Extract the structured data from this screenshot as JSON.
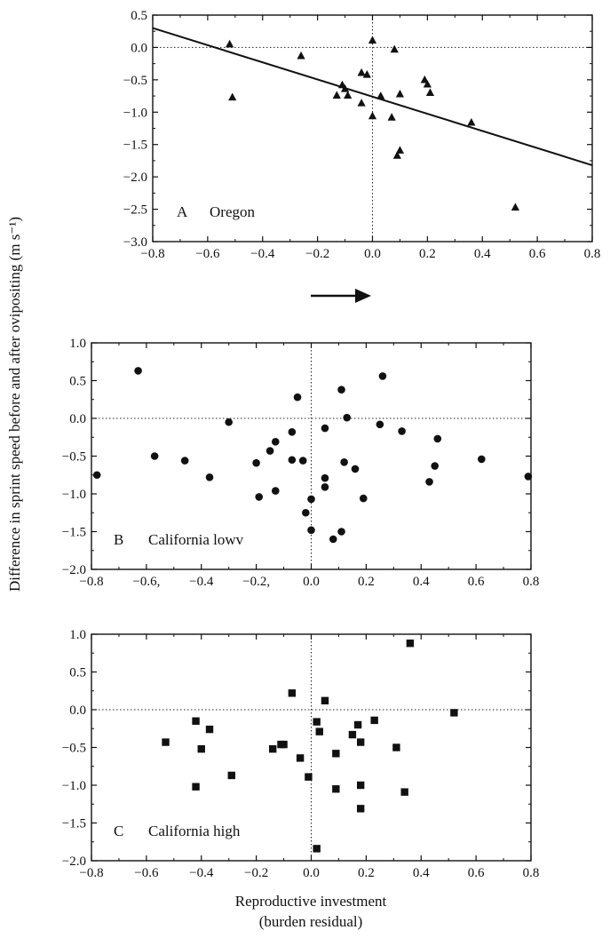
{
  "figure": {
    "ylabel": "Difference in sprint speed before and after ovipositing (m s⁻¹)",
    "xlabel_line1": "Reproductive investment",
    "xlabel_line2": "(burden residual)"
  },
  "chart_data": [
    {
      "type": "scatter",
      "panel_label": "A",
      "panel_name": "Oregon",
      "marker": "triangle",
      "xlim": [
        -0.8,
        0.8
      ],
      "ylim": [
        -3.0,
        0.5
      ],
      "xticks": [
        -0.8,
        -0.6,
        -0.4,
        -0.2,
        0.0,
        0.2,
        0.4,
        0.6,
        0.8
      ],
      "yticks": [
        0.5,
        0.0,
        -0.5,
        -1.0,
        -1.5,
        -2.0,
        -2.5,
        -3.0
      ],
      "xtick_labels": [
        "−0.8",
        "−0.6",
        "−0.4",
        "−0.2",
        "0.0",
        "0.2",
        "0.4",
        "0.6",
        "0.8"
      ],
      "ytick_labels": [
        "0.5",
        "0.0",
        "−0.5",
        "−1.0",
        "−1.5",
        "−2.0",
        "−2.5",
        "−3.0"
      ],
      "regression_line": {
        "x": [
          -0.8,
          0.8
        ],
        "y": [
          0.3,
          -1.82
        ]
      },
      "points": [
        {
          "x": -0.52,
          "y": 0.05
        },
        {
          "x": -0.51,
          "y": -0.77
        },
        {
          "x": -0.26,
          "y": -0.13
        },
        {
          "x": -0.13,
          "y": -0.74
        },
        {
          "x": -0.11,
          "y": -0.58
        },
        {
          "x": -0.1,
          "y": -0.64
        },
        {
          "x": -0.09,
          "y": -0.74
        },
        {
          "x": -0.04,
          "y": -0.86
        },
        {
          "x": -0.04,
          "y": -0.39
        },
        {
          "x": -0.02,
          "y": -0.42
        },
        {
          "x": 0.0,
          "y": 0.11
        },
        {
          "x": 0.0,
          "y": -1.06
        },
        {
          "x": 0.03,
          "y": -0.75
        },
        {
          "x": 0.07,
          "y": -1.08
        },
        {
          "x": 0.08,
          "y": -0.03
        },
        {
          "x": 0.09,
          "y": -1.67
        },
        {
          "x": 0.1,
          "y": -0.72
        },
        {
          "x": 0.1,
          "y": -1.59
        },
        {
          "x": 0.19,
          "y": -0.5
        },
        {
          "x": 0.2,
          "y": -0.57
        },
        {
          "x": 0.21,
          "y": -0.7
        },
        {
          "x": 0.36,
          "y": -1.16
        },
        {
          "x": 0.52,
          "y": -2.47
        }
      ]
    },
    {
      "type": "scatter",
      "panel_label": "B",
      "panel_name": "California lowv",
      "marker": "circle",
      "xlim": [
        -0.8,
        0.8
      ],
      "ylim": [
        -2.0,
        1.0
      ],
      "xticks": [
        -0.8,
        -0.6,
        -0.4,
        -0.2,
        0.0,
        0.2,
        0.4,
        0.6,
        0.8
      ],
      "yticks": [
        1.0,
        0.5,
        0.0,
        -0.5,
        -1.0,
        -1.5,
        -2.0
      ],
      "xtick_labels": [
        "−0.8",
        "−0.6,",
        "−0.4",
        "−0.2,",
        "0.0",
        "0.2",
        "0.4",
        "0.6",
        "0.8"
      ],
      "ytick_labels": [
        "1.0",
        "0.5",
        "0.0",
        "−0.5",
        "−1.0",
        "−1.5",
        "−2.0"
      ],
      "points": [
        {
          "x": -0.78,
          "y": -0.75
        },
        {
          "x": -0.63,
          "y": 0.63
        },
        {
          "x": -0.57,
          "y": -0.5
        },
        {
          "x": -0.46,
          "y": -0.56
        },
        {
          "x": -0.37,
          "y": -0.78
        },
        {
          "x": -0.3,
          "y": -0.05
        },
        {
          "x": -0.2,
          "y": -0.59
        },
        {
          "x": -0.19,
          "y": -1.04
        },
        {
          "x": -0.15,
          "y": -0.43
        },
        {
          "x": -0.13,
          "y": -0.31
        },
        {
          "x": -0.13,
          "y": -0.96
        },
        {
          "x": -0.07,
          "y": -0.18
        },
        {
          "x": -0.07,
          "y": -0.55
        },
        {
          "x": -0.05,
          "y": 0.28
        },
        {
          "x": -0.03,
          "y": -0.56
        },
        {
          "x": -0.02,
          "y": -1.25
        },
        {
          "x": 0.0,
          "y": -1.07
        },
        {
          "x": 0.0,
          "y": -1.48
        },
        {
          "x": 0.05,
          "y": -0.13
        },
        {
          "x": 0.05,
          "y": -0.79
        },
        {
          "x": 0.05,
          "y": -0.91
        },
        {
          "x": 0.08,
          "y": -1.6
        },
        {
          "x": 0.11,
          "y": 0.38
        },
        {
          "x": 0.11,
          "y": -1.5
        },
        {
          "x": 0.12,
          "y": -0.58
        },
        {
          "x": 0.13,
          "y": 0.01
        },
        {
          "x": 0.16,
          "y": -0.67
        },
        {
          "x": 0.19,
          "y": -1.06
        },
        {
          "x": 0.25,
          "y": -0.08
        },
        {
          "x": 0.26,
          "y": 0.56
        },
        {
          "x": 0.33,
          "y": -0.17
        },
        {
          "x": 0.43,
          "y": -0.84
        },
        {
          "x": 0.45,
          "y": -0.63
        },
        {
          "x": 0.46,
          "y": -0.27
        },
        {
          "x": 0.62,
          "y": -0.54
        },
        {
          "x": 0.79,
          "y": -0.77
        }
      ]
    },
    {
      "type": "scatter",
      "panel_label": "C",
      "panel_name": "California high",
      "marker": "square",
      "xlim": [
        -0.8,
        0.8
      ],
      "ylim": [
        -2.0,
        1.0
      ],
      "xticks": [
        -0.8,
        -0.6,
        -0.4,
        -0.2,
        0.0,
        0.2,
        0.4,
        0.6,
        0.8
      ],
      "yticks": [
        1.0,
        0.5,
        0.0,
        -0.5,
        -1.0,
        -1.5,
        -2.0
      ],
      "xtick_labels": [
        "−0.8",
        "−0.6",
        "−0.4",
        "−0.2",
        "0.0",
        "0.2",
        "0.4",
        "0.6",
        "0.8"
      ],
      "ytick_labels": [
        "1.0",
        "0.5",
        "0.0",
        "−0.5",
        "−1.0",
        "−1.5",
        "−2.0"
      ],
      "points": [
        {
          "x": -0.53,
          "y": -0.43
        },
        {
          "x": -0.42,
          "y": -0.15
        },
        {
          "x": -0.42,
          "y": -1.02
        },
        {
          "x": -0.4,
          "y": -0.52
        },
        {
          "x": -0.37,
          "y": -0.26
        },
        {
          "x": -0.29,
          "y": -0.87
        },
        {
          "x": -0.14,
          "y": -0.52
        },
        {
          "x": -0.11,
          "y": -0.46
        },
        {
          "x": -0.1,
          "y": -0.46
        },
        {
          "x": -0.07,
          "y": 0.22
        },
        {
          "x": -0.04,
          "y": -0.64
        },
        {
          "x": -0.01,
          "y": -0.89
        },
        {
          "x": 0.02,
          "y": -0.16
        },
        {
          "x": 0.02,
          "y": -1.84
        },
        {
          "x": 0.03,
          "y": -0.29
        },
        {
          "x": 0.05,
          "y": 0.12
        },
        {
          "x": 0.09,
          "y": -0.58
        },
        {
          "x": 0.09,
          "y": -1.05
        },
        {
          "x": 0.15,
          "y": -0.33
        },
        {
          "x": 0.17,
          "y": -0.2
        },
        {
          "x": 0.18,
          "y": -0.43
        },
        {
          "x": 0.18,
          "y": -1.0
        },
        {
          "x": 0.18,
          "y": -1.31
        },
        {
          "x": 0.23,
          "y": -0.14
        },
        {
          "x": 0.31,
          "y": -0.5
        },
        {
          "x": 0.34,
          "y": -1.09
        },
        {
          "x": 0.36,
          "y": 0.88
        },
        {
          "x": 0.52,
          "y": -0.04
        }
      ]
    }
  ]
}
